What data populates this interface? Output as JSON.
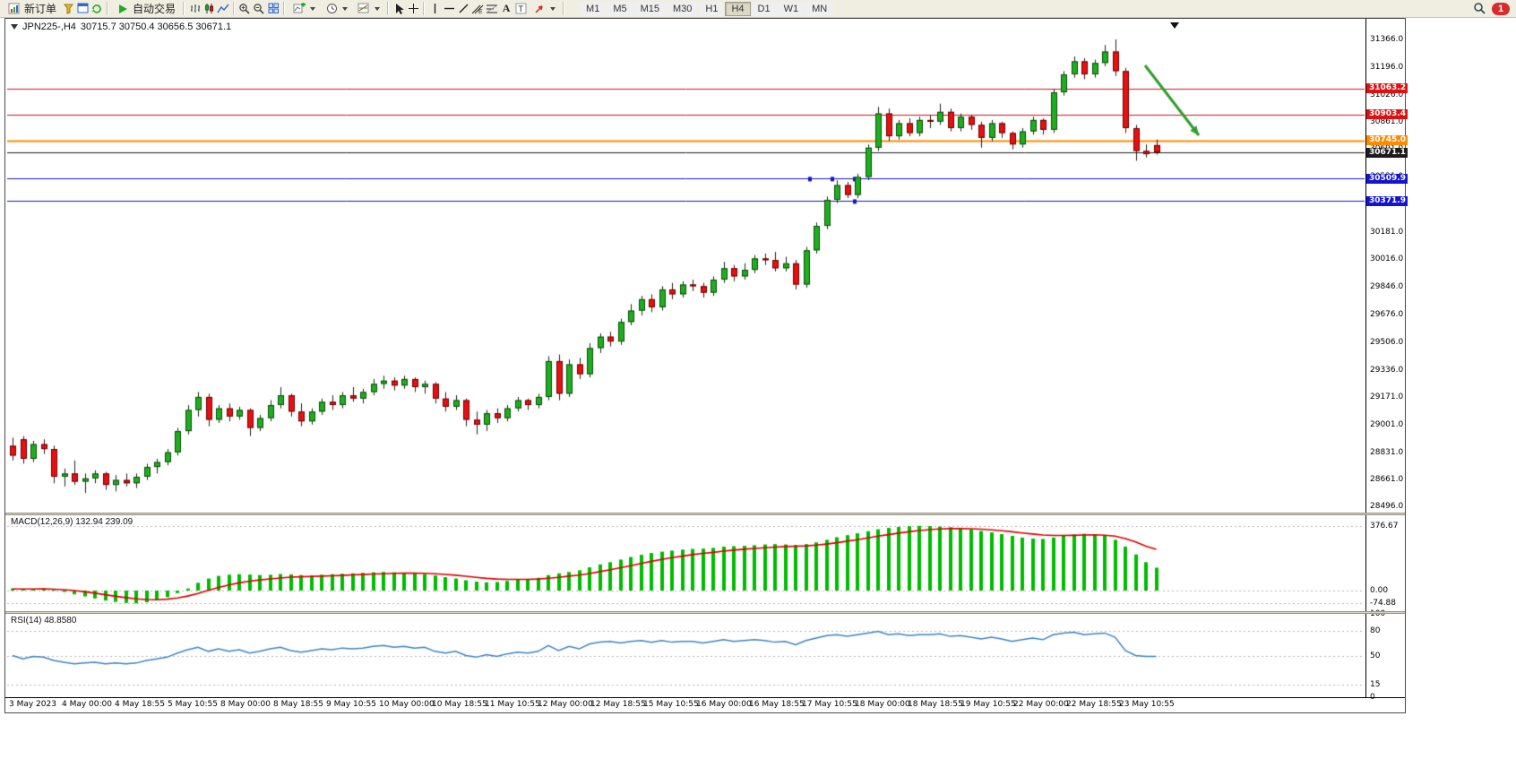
{
  "window": {
    "symbol_period": "JPN225-,H4",
    "ohlc": "30715.7 30750.4 30656.5 30671.1"
  },
  "toolbar": {
    "new_order_label": "新订单",
    "autotrade_label": "自动交易",
    "badge_count": "1",
    "timeframes": [
      "M1",
      "M5",
      "M15",
      "M30",
      "H1",
      "H4",
      "D1",
      "W1",
      "MN"
    ],
    "active_timeframe": "H4",
    "icons": {
      "new_order": "document-chart",
      "quotes": "funnel",
      "navigator": "window",
      "refresh": "circular-arrows",
      "autotrade": "play-triangle",
      "bar_chart": "ohlc-bars",
      "candlestick_chart": "candlesticks",
      "line_chart": "polyline",
      "zoom_in": "magnifier-plus",
      "zoom_out": "magnifier-minus",
      "tile_windows": "grid",
      "new_chart": "chart-plus",
      "periods": "clock",
      "templates": "chart-brush",
      "cursor": "pointer",
      "crosshair": "cross",
      "vertical_line": "v-line",
      "horizontal_line": "h-line",
      "trendline": "diagonal-line",
      "channel": "parallel-lines",
      "fibonacci": "fib-levels",
      "text": "letter-A",
      "label": "letter-T",
      "arrows": "arrow-ne",
      "search": "magnifier",
      "notification": "red-badge"
    }
  },
  "chart": {
    "price_axis_labels": [
      "31366.0",
      "31196.0",
      "31026.0",
      "30861.0",
      "30691.0",
      "30521.0",
      "30351.0",
      "30181.0",
      "30016.0",
      "29846.0",
      "29676.0",
      "29506.0",
      "29336.0",
      "29171.0",
      "29001.0",
      "28831.0",
      "28661.0",
      "28496.0"
    ],
    "hlines": [
      {
        "label": "31063.2",
        "value": 31063.2,
        "color": "#dd1111",
        "width": 1,
        "role": "resistance"
      },
      {
        "label": "30903.4",
        "value": 30903.4,
        "color": "#dd1111",
        "width": 1,
        "role": "resistance"
      },
      {
        "label": "30745.0",
        "value": 30745.0,
        "color": "#ff8a00",
        "width": 2,
        "role": "pivot"
      },
      {
        "label": "30671.1",
        "value": 30671.1,
        "color": "#1c1c1c",
        "width": 1,
        "role": "current-price"
      },
      {
        "label": "30509.9",
        "value": 30509.9,
        "color": "#1414cc",
        "width": 1,
        "role": "support"
      },
      {
        "label": "30371.9",
        "value": 30371.9,
        "color": "#1414cc",
        "width": 1,
        "role": "support"
      }
    ],
    "x_axis_labels": [
      "3 May 2023",
      "4 May 00:00",
      "4 May 18:55",
      "5 May 10:55",
      "8 May 00:00",
      "8 May 18:55",
      "9 May 10:55",
      "10 May 00:00",
      "10 May 18:55",
      "11 May 10:55",
      "12 May 00:00",
      "12 May 18:55",
      "15 May 10:55",
      "16 May 00:00",
      "16 May 18:55",
      "17 May 10:55",
      "18 May 00:00",
      "18 May 18:55",
      "19 May 10:55",
      "22 May 00:00",
      "22 May 18:55",
      "23 May 10:55"
    ],
    "arrow_annotation": {
      "color": "#2f9e2f",
      "direction": "down-right"
    }
  },
  "macd": {
    "title": "MACD(12,26,9)",
    "value_main": "132.94",
    "value_signal": "239.09",
    "axis_labels": [
      "376.67",
      "0.00",
      "-74.88"
    ]
  },
  "rsi": {
    "title": "RSI(14)",
    "value": "48.8580",
    "axis_labels": [
      "100",
      "80",
      "50",
      "15",
      "0"
    ],
    "levels": [
      80,
      50,
      15
    ]
  },
  "chart_data": {
    "type": "candlestick",
    "symbol": "JPN225-",
    "timeframe": "H4",
    "y_range": [
      28460,
      31480
    ],
    "hline_values": [
      31063.2,
      30903.4,
      30745.0,
      30671.1,
      30509.9,
      30371.9
    ],
    "ohlc": [
      [
        28870,
        28920,
        28780,
        28810
      ],
      [
        28910,
        28930,
        28760,
        28790
      ],
      [
        28790,
        28900,
        28770,
        28880
      ],
      [
        28880,
        28910,
        28820,
        28850
      ],
      [
        28850,
        28870,
        28640,
        28680
      ],
      [
        28680,
        28730,
        28620,
        28700
      ],
      [
        28700,
        28780,
        28630,
        28650
      ],
      [
        28650,
        28700,
        28580,
        28670
      ],
      [
        28670,
        28720,
        28640,
        28700
      ],
      [
        28700,
        28710,
        28600,
        28630
      ],
      [
        28630,
        28690,
        28590,
        28660
      ],
      [
        28660,
        28700,
        28620,
        28640
      ],
      [
        28640,
        28700,
        28610,
        28680
      ],
      [
        28680,
        28760,
        28660,
        28740
      ],
      [
        28740,
        28790,
        28700,
        28770
      ],
      [
        28770,
        28850,
        28750,
        28830
      ],
      [
        28830,
        28980,
        28810,
        28960
      ],
      [
        28960,
        29120,
        28940,
        29090
      ],
      [
        29090,
        29200,
        29050,
        29170
      ],
      [
        29170,
        29190,
        28990,
        29030
      ],
      [
        29030,
        29120,
        29010,
        29100
      ],
      [
        29100,
        29130,
        29020,
        29050
      ],
      [
        29050,
        29110,
        29030,
        29090
      ],
      [
        29090,
        29100,
        28930,
        28980
      ],
      [
        28980,
        29060,
        28960,
        29040
      ],
      [
        29040,
        29150,
        29020,
        29120
      ],
      [
        29120,
        29230,
        29100,
        29180
      ],
      [
        29180,
        29190,
        29050,
        29080
      ],
      [
        29080,
        29130,
        28990,
        29020
      ],
      [
        29020,
        29100,
        29000,
        29080
      ],
      [
        29080,
        29160,
        29060,
        29140
      ],
      [
        29140,
        29180,
        29090,
        29120
      ],
      [
        29120,
        29200,
        29100,
        29180
      ],
      [
        29180,
        29230,
        29140,
        29160
      ],
      [
        29160,
        29220,
        29130,
        29200
      ],
      [
        29200,
        29280,
        29180,
        29250
      ],
      [
        29250,
        29300,
        29220,
        29270
      ],
      [
        29270,
        29290,
        29210,
        29240
      ],
      [
        29240,
        29300,
        29220,
        29280
      ],
      [
        29280,
        29290,
        29200,
        29230
      ],
      [
        29230,
        29270,
        29190,
        29250
      ],
      [
        29250,
        29260,
        29130,
        29160
      ],
      [
        29160,
        29200,
        29080,
        29110
      ],
      [
        29110,
        29180,
        29090,
        29150
      ],
      [
        29150,
        29160,
        28990,
        29030
      ],
      [
        29030,
        29080,
        28940,
        29000
      ],
      [
        29000,
        29090,
        28960,
        29070
      ],
      [
        29070,
        29100,
        29010,
        29040
      ],
      [
        29040,
        29120,
        29020,
        29100
      ],
      [
        29100,
        29170,
        29080,
        29150
      ],
      [
        29150,
        29160,
        29090,
        29120
      ],
      [
        29120,
        29190,
        29100,
        29170
      ],
      [
        29170,
        29420,
        29150,
        29390
      ],
      [
        29390,
        29430,
        29150,
        29190
      ],
      [
        29190,
        29400,
        29170,
        29370
      ],
      [
        29370,
        29410,
        29280,
        29310
      ],
      [
        29310,
        29500,
        29290,
        29470
      ],
      [
        29470,
        29560,
        29440,
        29540
      ],
      [
        29540,
        29570,
        29480,
        29510
      ],
      [
        29510,
        29650,
        29490,
        29630
      ],
      [
        29630,
        29740,
        29610,
        29700
      ],
      [
        29700,
        29790,
        29670,
        29770
      ],
      [
        29770,
        29800,
        29690,
        29720
      ],
      [
        29720,
        29850,
        29700,
        29830
      ],
      [
        29830,
        29870,
        29770,
        29800
      ],
      [
        29800,
        29880,
        29780,
        29860
      ],
      [
        29860,
        29890,
        29820,
        29850
      ],
      [
        29850,
        29870,
        29780,
        29810
      ],
      [
        29810,
        29910,
        29790,
        29890
      ],
      [
        29890,
        30000,
        29870,
        29960
      ],
      [
        29960,
        29980,
        29880,
        29910
      ],
      [
        29910,
        29990,
        29890,
        29950
      ],
      [
        29950,
        30040,
        29930,
        30020
      ],
      [
        30020,
        30050,
        29980,
        30010
      ],
      [
        30010,
        30060,
        29940,
        29960
      ],
      [
        29960,
        30030,
        29940,
        29990
      ],
      [
        29990,
        30010,
        29830,
        29860
      ],
      [
        29860,
        30090,
        29840,
        30070
      ],
      [
        30070,
        30240,
        30050,
        30220
      ],
      [
        30220,
        30400,
        30200,
        30380
      ],
      [
        30380,
        30500,
        30360,
        30470
      ],
      [
        30470,
        30490,
        30390,
        30410
      ],
      [
        30410,
        30540,
        30390,
        30520
      ],
      [
        30520,
        30720,
        30500,
        30700
      ],
      [
        30700,
        30950,
        30680,
        30910
      ],
      [
        30910,
        30940,
        30740,
        30770
      ],
      [
        30770,
        30870,
        30750,
        30850
      ],
      [
        30850,
        30880,
        30770,
        30790
      ],
      [
        30790,
        30890,
        30770,
        30870
      ],
      [
        30870,
        30900,
        30820,
        30860
      ],
      [
        30860,
        30970,
        30840,
        30920
      ],
      [
        30920,
        30940,
        30800,
        30820
      ],
      [
        30820,
        30910,
        30800,
        30890
      ],
      [
        30890,
        30900,
        30810,
        30840
      ],
      [
        30840,
        30860,
        30700,
        30760
      ],
      [
        30760,
        30870,
        30740,
        30850
      ],
      [
        30850,
        30860,
        30760,
        30790
      ],
      [
        30790,
        30800,
        30690,
        30720
      ],
      [
        30720,
        30820,
        30700,
        30800
      ],
      [
        30800,
        30890,
        30780,
        30870
      ],
      [
        30870,
        30880,
        30780,
        30810
      ],
      [
        30810,
        31060,
        30790,
        31040
      ],
      [
        31040,
        31170,
        31020,
        31150
      ],
      [
        31150,
        31260,
        31130,
        31230
      ],
      [
        31230,
        31250,
        31120,
        31150
      ],
      [
        31150,
        31240,
        31130,
        31220
      ],
      [
        31220,
        31330,
        31200,
        31290
      ],
      [
        31290,
        31365,
        31140,
        31170
      ],
      [
        31170,
        31190,
        30790,
        30820
      ],
      [
        30820,
        30840,
        30620,
        30680
      ],
      [
        30680,
        30720,
        30640,
        30660
      ],
      [
        30716,
        30750,
        30657,
        30671
      ]
    ],
    "macd_histogram": [
      12,
      8,
      10,
      12,
      4,
      -8,
      -22,
      -34,
      -46,
      -58,
      -66,
      -72,
      -74,
      -68,
      -55,
      -38,
      -15,
      12,
      45,
      70,
      85,
      92,
      95,
      93,
      90,
      92,
      96,
      94,
      90,
      88,
      92,
      95,
      98,
      100,
      103,
      106,
      108,
      106,
      104,
      100,
      96,
      88,
      78,
      70,
      60,
      52,
      48,
      50,
      56,
      64,
      68,
      74,
      90,
      100,
      108,
      118,
      135,
      152,
      165,
      180,
      195,
      208,
      218,
      226,
      232,
      238,
      242,
      244,
      248,
      255,
      258,
      260,
      264,
      268,
      270,
      268,
      265,
      270,
      280,
      295,
      310,
      322,
      333,
      345,
      356,
      364,
      370,
      374,
      376,
      375,
      372,
      368,
      362,
      355,
      346,
      338,
      328,
      318,
      308,
      302,
      300,
      308,
      318,
      326,
      330,
      326,
      318,
      295,
      255,
      210,
      165,
      133
    ],
    "macd_signal": [
      9,
      9,
      9,
      10,
      8,
      5,
      0,
      -7,
      -15,
      -24,
      -33,
      -41,
      -48,
      -52,
      -53,
      -50,
      -43,
      -32,
      -17,
      1,
      18,
      33,
      45,
      55,
      62,
      68,
      73,
      78,
      80,
      82,
      84,
      86,
      88,
      91,
      93,
      96,
      98,
      100,
      101,
      101,
      100,
      98,
      94,
      89,
      83,
      77,
      71,
      67,
      65,
      65,
      65,
      67,
      72,
      77,
      84,
      90,
      99,
      110,
      121,
      133,
      145,
      158,
      170,
      181,
      191,
      200,
      209,
      216,
      222,
      229,
      235,
      240,
      245,
      249,
      253,
      256,
      258,
      260,
      264,
      270,
      278,
      287,
      296,
      306,
      316,
      325,
      334,
      342,
      349,
      354,
      358,
      360,
      360,
      359,
      357,
      353,
      348,
      342,
      335,
      329,
      323,
      320,
      320,
      321,
      323,
      324,
      322,
      316,
      302,
      282,
      258,
      239
    ],
    "rsi_values": [
      50,
      46,
      49,
      48,
      44,
      42,
      40,
      41,
      42,
      40,
      41,
      40,
      41,
      44,
      46,
      48,
      53,
      57,
      60,
      55,
      58,
      55,
      57,
      53,
      55,
      58,
      60,
      56,
      54,
      56,
      58,
      57,
      59,
      58,
      59,
      61,
      62,
      60,
      61,
      59,
      60,
      55,
      53,
      55,
      50,
      48,
      51,
      49,
      52,
      54,
      53,
      55,
      62,
      56,
      61,
      58,
      64,
      66,
      67,
      65,
      67,
      68,
      66,
      68,
      66,
      67,
      67,
      65,
      67,
      69,
      67,
      68,
      69,
      68,
      66,
      67,
      63,
      68,
      71,
      74,
      75,
      73,
      75,
      77,
      79,
      75,
      76,
      74,
      75,
      75,
      76,
      73,
      74,
      72,
      70,
      72,
      70,
      67,
      69,
      71,
      69,
      75,
      77,
      78,
      75,
      76,
      77,
      72,
      56,
      50,
      49,
      49
    ]
  }
}
